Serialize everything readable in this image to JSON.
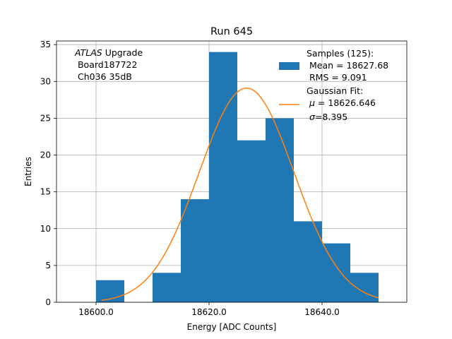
{
  "colors": {
    "bar": "#1f77b4",
    "fit": "#ff7f0e",
    "grid": "#b0b0b0",
    "axis": "#000000",
    "background": "#ffffff"
  },
  "chart_data": {
    "type": "bar",
    "title": "Run 645",
    "xlabel": "Energy [ADC Counts]",
    "ylabel": "Entries",
    "xlim": [
      18593.0,
      18655.0
    ],
    "ylim": [
      0,
      35.5
    ],
    "grid": true,
    "x_ticks": [
      {
        "value": 18600.0,
        "label": "18600.0"
      },
      {
        "value": 18620.0,
        "label": "18620.0"
      },
      {
        "value": 18640.0,
        "label": "18640.0"
      }
    ],
    "y_ticks": [
      {
        "value": 0,
        "label": "0"
      },
      {
        "value": 5,
        "label": "5"
      },
      {
        "value": 10,
        "label": "10"
      },
      {
        "value": 15,
        "label": "15"
      },
      {
        "value": 20,
        "label": "20"
      },
      {
        "value": 25,
        "label": "25"
      },
      {
        "value": 30,
        "label": "30"
      },
      {
        "value": 35,
        "label": "35"
      }
    ],
    "histogram": {
      "name": "Samples (125):",
      "bin_edges": [
        18600,
        18605,
        18610,
        18615,
        18620,
        18625,
        18630,
        18635,
        18640,
        18645,
        18650
      ],
      "counts": [
        3,
        0,
        4,
        14,
        34,
        22,
        25,
        11,
        8,
        4
      ]
    },
    "gaussian_fit": {
      "name": "Gaussian Fit:",
      "amplitude": 29.1,
      "mu": 18626.646,
      "sigma": 8.395,
      "x_range": [
        18601,
        18650
      ]
    },
    "annotation": {
      "italic_part": "ATLAS",
      "line1_rest": " Upgrade",
      "line2": " Board187722",
      "line3": " Ch036 35dB"
    },
    "legend": {
      "location": "upper-right",
      "samples_title": "Samples (125):",
      "samples_mean": " Mean = 18627.68",
      "samples_rms": " RMS = 9.091",
      "fit_title": "Gaussian Fit:",
      "fit_mu_symbol": "μ",
      "fit_mu_value": " = 18626.646",
      "fit_sigma_symbol": "σ",
      "fit_sigma_value": "=8.395"
    }
  }
}
